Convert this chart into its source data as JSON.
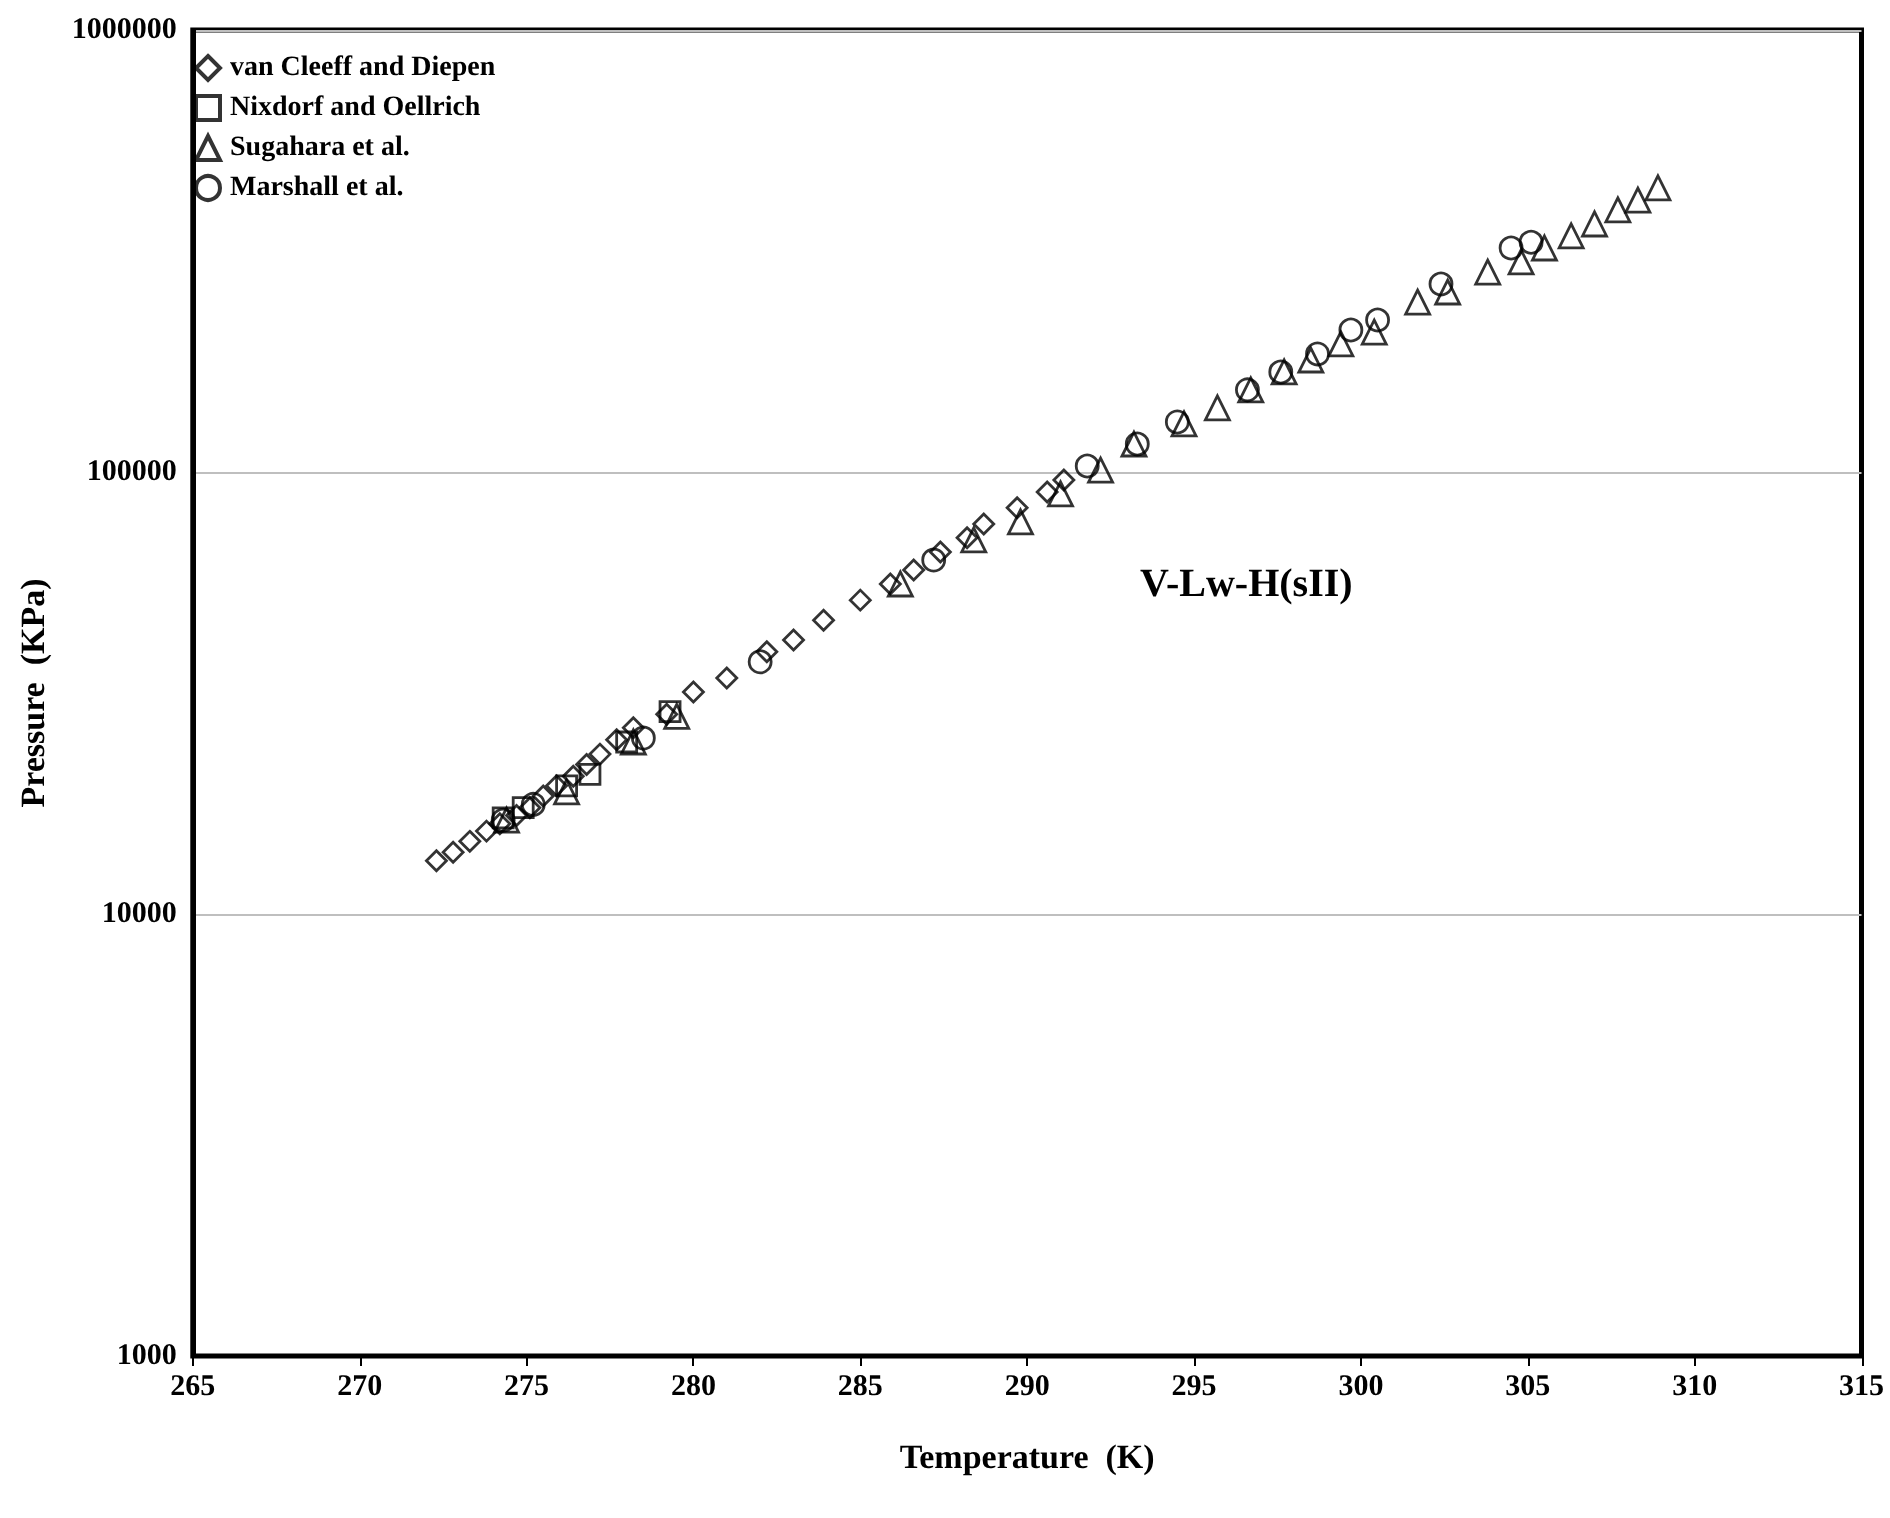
{
  "chart_data": {
    "type": "scatter",
    "xlabel": "Temperature  (K)",
    "ylabel": "Pressure  (KPa)",
    "annotations": [
      "V-Lw-H(sII)"
    ],
    "xlim": [
      265,
      315
    ],
    "xticks": [
      265,
      270,
      275,
      280,
      285,
      290,
      295,
      300,
      305,
      310,
      315
    ],
    "ylim": [
      1000,
      1000000
    ],
    "yticks": [
      1000,
      10000,
      100000,
      1000000
    ],
    "log": true,
    "grid": "y",
    "legend": "top left",
    "series": [
      {
        "name": "van Cleeff and Diepen",
        "color": "#000000",
        "marker": "diamond",
        "x": [
          272.3,
          272.8,
          273.3,
          273.8,
          274.2,
          274.7,
          275.1,
          275.5,
          275.9,
          276.4,
          276.8,
          277.2,
          277.7,
          278.2,
          279.2,
          280.0,
          281.0,
          282.2,
          283.0,
          283.9,
          285.0,
          285.9,
          286.6,
          287.4,
          288.2,
          288.7,
          289.7,
          290.6,
          291.1
        ],
        "values": [
          13200,
          13800,
          14600,
          15400,
          16000,
          16700,
          17400,
          18500,
          19500,
          20500,
          21800,
          23000,
          24800,
          26400,
          28300,
          31800,
          34200,
          39200,
          41700,
          46200,
          51300,
          55800,
          60000,
          65900,
          71000,
          76300,
          83000,
          90100,
          95900
        ]
      },
      {
        "name": "Nixdorf and Oellrich",
        "color": "#000000",
        "marker": "square",
        "x": [
          274.3,
          274.9,
          276.2,
          276.9,
          278.0,
          279.3
        ],
        "values": [
          16500,
          17400,
          19500,
          20700,
          24500,
          28700
        ]
      },
      {
        "name": "Sugahara et al.",
        "color": "#000000",
        "marker": "triangle",
        "x": [
          274.4,
          276.2,
          278.2,
          279.5,
          286.2,
          288.4,
          289.8,
          291.0,
          292.2,
          293.2,
          294.7,
          295.7,
          296.7,
          297.7,
          298.5,
          299.4,
          300.4,
          301.7,
          302.6,
          303.8,
          304.8,
          305.5,
          306.3,
          307.0,
          307.7,
          308.3,
          308.9
        ],
        "values": [
          16300,
          18900,
          24500,
          28000,
          55800,
          70200,
          77100,
          89200,
          101000,
          115700,
          128500,
          139600,
          153400,
          168400,
          179200,
          195000,
          207300,
          242400,
          255400,
          283400,
          298700,
          321200,
          342000,
          364000,
          391700,
          412300,
          439300
        ]
      },
      {
        "name": "Marshall et al.",
        "color": "#000000",
        "marker": "circle",
        "x": [
          274.3,
          275.2,
          278.5,
          282.0,
          287.2,
          291.8,
          293.3,
          294.5,
          296.6,
          297.6,
          298.7,
          299.7,
          300.5,
          302.4,
          304.5,
          305.1
        ],
        "values": [
          16300,
          17700,
          25000,
          37200,
          63200,
          103200,
          115700,
          129800,
          153400,
          168400,
          185000,
          209500,
          220800,
          266300,
          321200,
          331000
        ]
      }
    ]
  }
}
